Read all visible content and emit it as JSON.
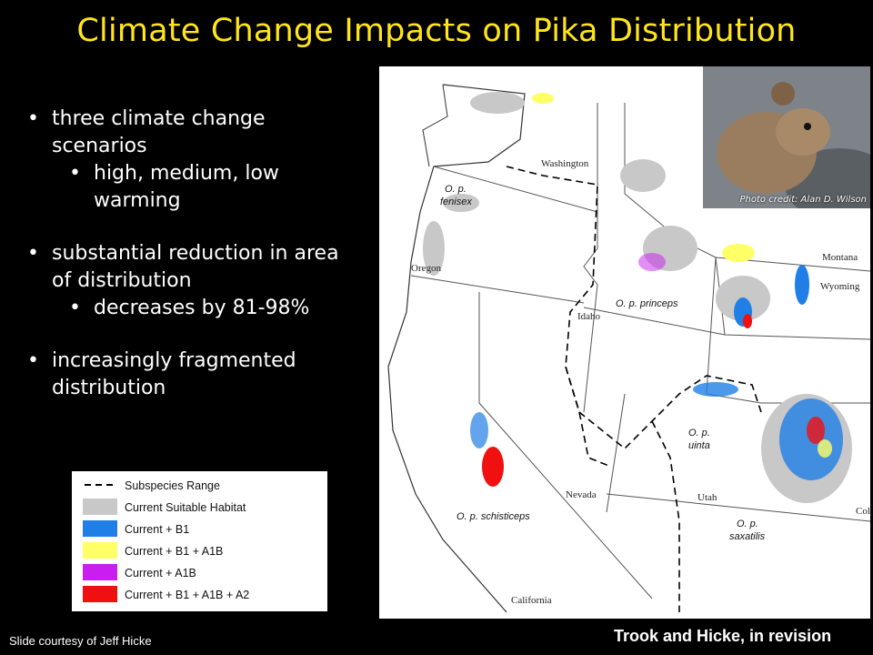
{
  "slide": {
    "title": "Climate Change Impacts on Pika Distribution",
    "bullets": [
      {
        "text": "three climate change scenarios",
        "level": 1
      },
      {
        "text": "high, medium, low warming",
        "level": 2
      },
      {
        "text": "substantial reduction in area of distribution",
        "level": 1
      },
      {
        "text": "decreases by 81-98%",
        "level": 2
      },
      {
        "text": "increasingly fragmented distribution",
        "level": 1
      }
    ],
    "citation": "Trook and Hicke, in revision",
    "courtesy": "Slide courtesy of Jeff Hicke",
    "photo_credit": "Photo credit: Alan D. Wilson"
  },
  "legend": {
    "items": [
      {
        "label": "Subspecies Range",
        "swatch": "dashed-line",
        "color": "#000000"
      },
      {
        "label": "Current Suitable Habitat",
        "color": "#C8C8C8"
      },
      {
        "label": "Current + B1",
        "color": "#1F7FE6"
      },
      {
        "label": "Current + B1 + A1B",
        "color": "#FFFF66"
      },
      {
        "label": "Current + A1B",
        "color": "#C81EF0"
      },
      {
        "label": "Current + B1 + A1B + A2",
        "color": "#F01010"
      }
    ]
  },
  "map": {
    "states": [
      "Washington",
      "Oregon",
      "Idaho",
      "Montana",
      "Wyoming",
      "Nevada",
      "Utah",
      "California",
      "Col"
    ],
    "subspecies": {
      "fenisex": [
        "O. p.",
        "fenisex"
      ],
      "princeps": "O. p. princeps",
      "uinta": [
        "O. p.",
        "uinta"
      ],
      "schisticeps": "O. p. schisticeps",
      "saxatilis": [
        "O. p.",
        "saxatilis"
      ]
    }
  },
  "colors": {
    "title": "#FFE51A",
    "background": "#000000",
    "text": "#FFFFFF"
  }
}
